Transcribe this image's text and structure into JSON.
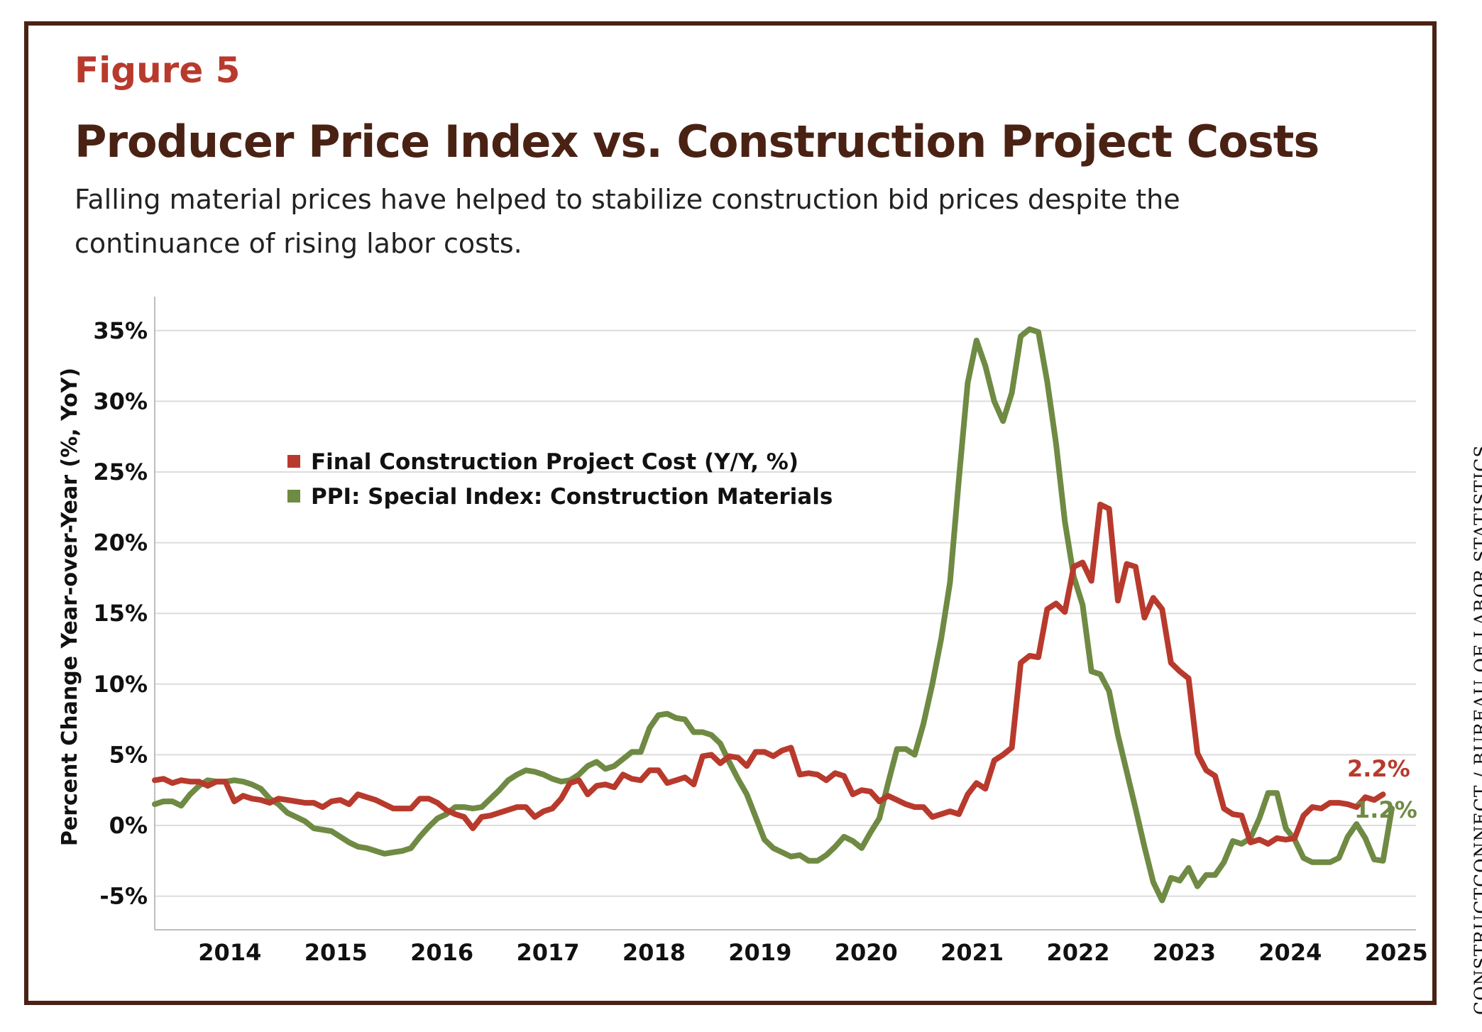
{
  "figure_label": "Figure 5",
  "subtitle": "Falling material prices have helped to stabilize construction bid prices despite the continuance of rising labor costs.",
  "source": "CONSTRUCTCONNECT / BUREAU OF LABOR STATISTICS",
  "colors": {
    "frame": "#4a2214",
    "accent": "#b83a2d",
    "final_cost": "#b83a2d",
    "ppi": "#6f8a43"
  },
  "chart_data": {
    "type": "line",
    "title": "Producer Price Index vs. Construction Project Costs",
    "ylabel": "Percent Change Year-over-Year (%, YoY)",
    "xlabel": "",
    "x_start": "2013-10",
    "x_frequency": "monthly",
    "ylim": [
      -7.5,
      37.5
    ],
    "yticks": [
      -5,
      0,
      5,
      10,
      15,
      20,
      25,
      30,
      35
    ],
    "ytick_labels": [
      "-5%",
      "0%",
      "5%",
      "10%",
      "15%",
      "20%",
      "25%",
      "30%",
      "35%"
    ],
    "xtick_labels": [
      "2014",
      "2015",
      "2016",
      "2017",
      "2018",
      "2019",
      "2020",
      "2021",
      "2022",
      "2023",
      "2024",
      "2025"
    ],
    "grid": "horizontal",
    "legend_position": "top-left",
    "series": [
      {
        "name": "Final Construction Project Cost (Y/Y, %)",
        "end_label": "2.2%",
        "values": [
          3.2,
          3.3,
          3.0,
          3.2,
          3.1,
          3.1,
          2.8,
          3.1,
          3.1,
          1.7,
          2.1,
          1.9,
          1.8,
          1.6,
          1.9,
          1.8,
          1.7,
          1.6,
          1.6,
          1.3,
          1.7,
          1.8,
          1.5,
          2.2,
          2.0,
          1.8,
          1.5,
          1.2,
          1.2,
          1.2,
          1.9,
          1.9,
          1.6,
          1.1,
          0.8,
          0.6,
          -0.2,
          0.6,
          0.7,
          0.9,
          1.1,
          1.3,
          1.3,
          0.6,
          1.0,
          1.2,
          1.9,
          3.0,
          3.2,
          2.2,
          2.8,
          2.9,
          2.7,
          3.6,
          3.3,
          3.2,
          3.9,
          3.9,
          3.0,
          3.2,
          3.4,
          2.9,
          4.9,
          5.0,
          4.4,
          4.9,
          4.8,
          4.2,
          5.2,
          5.2,
          4.9,
          5.3,
          5.5,
          3.6,
          3.7,
          3.6,
          3.2,
          3.7,
          3.5,
          2.2,
          2.5,
          2.4,
          1.7,
          2.1,
          1.8,
          1.5,
          1.3,
          1.3,
          0.6,
          0.8,
          1.0,
          0.8,
          2.2,
          3.0,
          2.6,
          4.6,
          5.0,
          5.5,
          11.5,
          12.0,
          11.9,
          15.3,
          15.7,
          15.1,
          18.3,
          18.6,
          17.3,
          22.7,
          22.4,
          15.9,
          18.5,
          18.3,
          14.7,
          16.1,
          15.3,
          11.5,
          10.9,
          10.4,
          5.1,
          3.9,
          3.5,
          1.2,
          0.8,
          0.7,
          -1.2,
          -1.0,
          -1.3,
          -0.9,
          -1.0,
          -0.9,
          0.7,
          1.3,
          1.2,
          1.6,
          1.6,
          1.5,
          1.3,
          2.0,
          1.8,
          2.2
        ]
      },
      {
        "name": "PPI: Special Index: Construction Materials",
        "end_label": "1.2%",
        "values": [
          1.5,
          1.7,
          1.7,
          1.4,
          2.2,
          2.8,
          3.2,
          3.1,
          3.1,
          3.2,
          3.1,
          2.9,
          2.6,
          1.9,
          1.5,
          0.9,
          0.6,
          0.3,
          -0.2,
          -0.3,
          -0.4,
          -0.8,
          -1.2,
          -1.5,
          -1.6,
          -1.8,
          -2.0,
          -1.9,
          -1.8,
          -1.6,
          -0.8,
          -0.1,
          0.5,
          0.8,
          1.3,
          1.3,
          1.2,
          1.3,
          1.9,
          2.5,
          3.2,
          3.6,
          3.9,
          3.8,
          3.6,
          3.3,
          3.1,
          3.2,
          3.6,
          4.2,
          4.5,
          4.0,
          4.2,
          4.7,
          5.2,
          5.2,
          6.9,
          7.8,
          7.9,
          7.6,
          7.5,
          6.6,
          6.6,
          6.4,
          5.8,
          4.5,
          3.3,
          2.2,
          0.6,
          -1.0,
          -1.6,
          -1.9,
          -2.2,
          -2.1,
          -2.5,
          -2.5,
          -2.1,
          -1.5,
          -0.8,
          -1.1,
          -1.6,
          -0.5,
          0.5,
          3.0,
          5.4,
          5.4,
          5.0,
          7.2,
          10.0,
          13.2,
          17.2,
          24.5,
          31.3,
          34.3,
          32.5,
          30.0,
          28.6,
          30.6,
          34.6,
          35.1,
          34.9,
          31.4,
          27.0,
          21.5,
          17.6,
          15.6,
          10.9,
          10.7,
          9.5,
          6.4,
          3.8,
          1.2,
          -1.5,
          -4.0,
          -5.3,
          -3.7,
          -3.9,
          -3.0,
          -4.3,
          -3.5,
          -3.5,
          -2.6,
          -1.1,
          -1.3,
          -0.9,
          0.5,
          2.3,
          2.3,
          -0.2,
          -1.0,
          -2.3,
          -2.6,
          -2.6,
          -2.6,
          -2.3,
          -0.8,
          0.1,
          -0.9,
          -2.4,
          -2.5,
          1.2
        ]
      }
    ]
  }
}
